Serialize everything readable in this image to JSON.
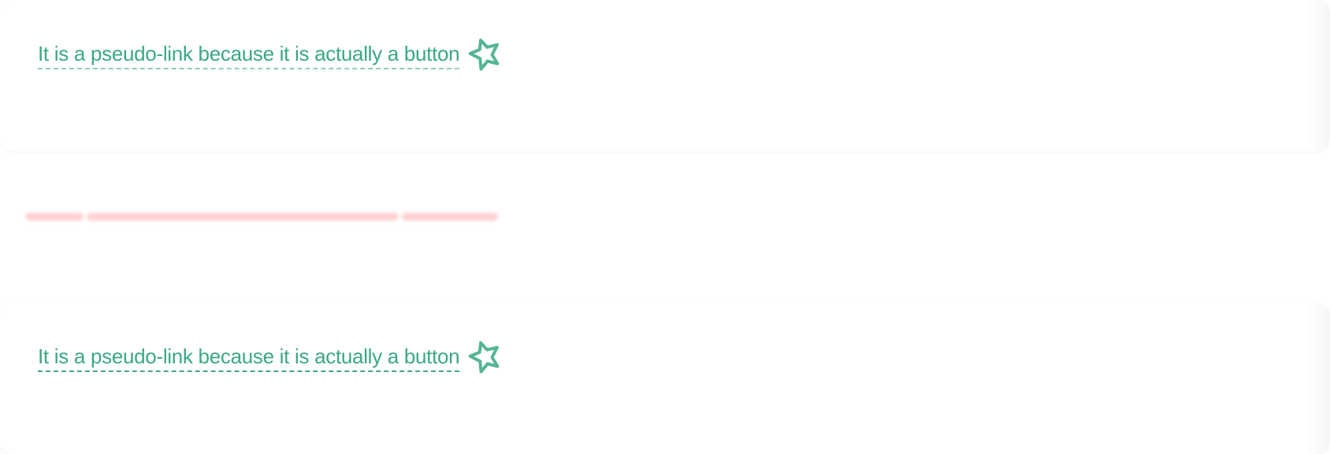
{
  "colors": {
    "link": "#3aa982",
    "link_dash_light": "#8fd0b7",
    "skeleton": "#ffc9c9"
  },
  "cards": [
    {
      "link_label": "It is a pseudo-link because it is actually a button",
      "icon": "star-outline-icon"
    },
    {
      "link_label": "It is a pseudo-link because it is actually a button",
      "icon": "star-outline-icon"
    }
  ]
}
